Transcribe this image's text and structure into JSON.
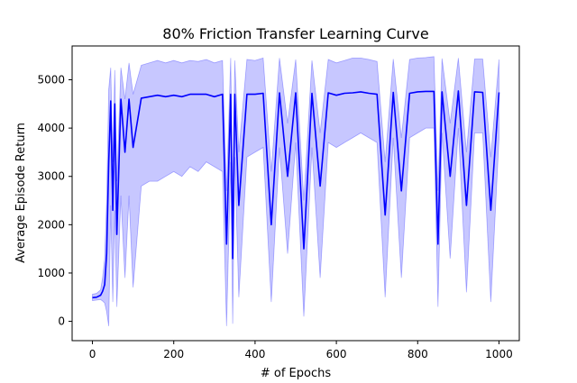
{
  "chart_data": {
    "type": "line",
    "title": "80% Friction Transfer Learning Curve",
    "xlabel": "# of Epochs",
    "ylabel": "Average Episode Return",
    "xlim": [
      -50,
      1050
    ],
    "ylim": [
      -400,
      5700
    ],
    "xticks": [
      0,
      200,
      400,
      600,
      800,
      1000
    ],
    "yticks": [
      0,
      1000,
      2000,
      3000,
      4000,
      5000
    ],
    "grid": false,
    "legend": "none",
    "series": [
      {
        "role": "mean",
        "color": "#0000ff",
        "x": [
          0,
          10,
          20,
          25,
          30,
          35,
          40,
          45,
          50,
          55,
          60,
          70,
          80,
          90,
          100,
          120,
          140,
          160,
          180,
          200,
          220,
          240,
          260,
          280,
          300,
          320,
          330,
          340,
          345,
          350,
          360,
          380,
          400,
          420,
          440,
          460,
          480,
          500,
          520,
          540,
          560,
          580,
          600,
          620,
          640,
          660,
          680,
          700,
          720,
          740,
          760,
          780,
          800,
          820,
          840,
          850,
          860,
          880,
          900,
          920,
          940,
          960,
          980,
          1000
        ],
        "values": [
          490,
          500,
          540,
          620,
          760,
          1400,
          3300,
          4560,
          2300,
          4500,
          1800,
          4600,
          3500,
          4600,
          3600,
          4620,
          4650,
          4680,
          4650,
          4680,
          4650,
          4700,
          4700,
          4700,
          4650,
          4700,
          1600,
          4700,
          1300,
          4700,
          2400,
          4700,
          4700,
          4720,
          2000,
          4730,
          3000,
          4730,
          1500,
          4720,
          2800,
          4730,
          4680,
          4720,
          4730,
          4750,
          4720,
          4700,
          2200,
          4740,
          2700,
          4720,
          4750,
          4760,
          4760,
          1600,
          4750,
          3000,
          4770,
          2400,
          4750,
          4740,
          2300,
          4740
        ]
      },
      {
        "role": "upper_band",
        "color": "#0000ff",
        "x": [
          0,
          10,
          20,
          25,
          30,
          35,
          40,
          45,
          50,
          55,
          60,
          70,
          80,
          90,
          100,
          120,
          140,
          160,
          180,
          200,
          220,
          240,
          260,
          280,
          300,
          320,
          330,
          340,
          345,
          350,
          360,
          380,
          400,
          420,
          440,
          460,
          480,
          500,
          520,
          540,
          560,
          580,
          600,
          620,
          640,
          660,
          680,
          700,
          720,
          740,
          760,
          780,
          800,
          820,
          840,
          850,
          860,
          880,
          900,
          920,
          940,
          960,
          980,
          1000
        ],
        "values": [
          560,
          580,
          650,
          900,
          1300,
          2500,
          4800,
          5250,
          3300,
          5200,
          2900,
          5250,
          4600,
          5350,
          4700,
          5300,
          5350,
          5400,
          5350,
          5400,
          5350,
          5400,
          5380,
          5420,
          5350,
          5400,
          2700,
          5450,
          2500,
          5400,
          3500,
          5420,
          5400,
          5450,
          3100,
          5450,
          4100,
          5420,
          2500,
          5400,
          3900,
          5420,
          5350,
          5400,
          5450,
          5450,
          5420,
          5380,
          3300,
          5430,
          3800,
          5420,
          5450,
          5460,
          5480,
          2700,
          5440,
          4100,
          5450,
          3500,
          5430,
          5430,
          3400,
          5420
        ]
      },
      {
        "role": "lower_band",
        "color": "#0000ff",
        "x": [
          0,
          10,
          20,
          25,
          30,
          35,
          40,
          45,
          50,
          55,
          60,
          70,
          80,
          90,
          100,
          120,
          140,
          160,
          180,
          200,
          220,
          240,
          260,
          280,
          300,
          320,
          330,
          340,
          345,
          350,
          360,
          380,
          400,
          420,
          440,
          460,
          480,
          500,
          520,
          540,
          560,
          580,
          600,
          620,
          640,
          660,
          680,
          700,
          720,
          740,
          760,
          780,
          800,
          820,
          840,
          850,
          860,
          880,
          900,
          920,
          940,
          960,
          980,
          1000
        ],
        "values": [
          430,
          440,
          450,
          420,
          380,
          200,
          -100,
          2400,
          400,
          2300,
          300,
          2600,
          900,
          2600,
          700,
          2800,
          2900,
          2900,
          3000,
          3100,
          3000,
          3200,
          3100,
          3300,
          3200,
          3100,
          -100,
          3300,
          -50,
          3400,
          500,
          3400,
          3500,
          3600,
          400,
          3600,
          1400,
          3700,
          100,
          3600,
          900,
          3700,
          3600,
          3700,
          3800,
          3900,
          3800,
          3700,
          500,
          3800,
          900,
          3800,
          3900,
          4000,
          4000,
          300,
          3900,
          1300,
          4000,
          600,
          3900,
          3900,
          400,
          3800
        ]
      }
    ]
  }
}
